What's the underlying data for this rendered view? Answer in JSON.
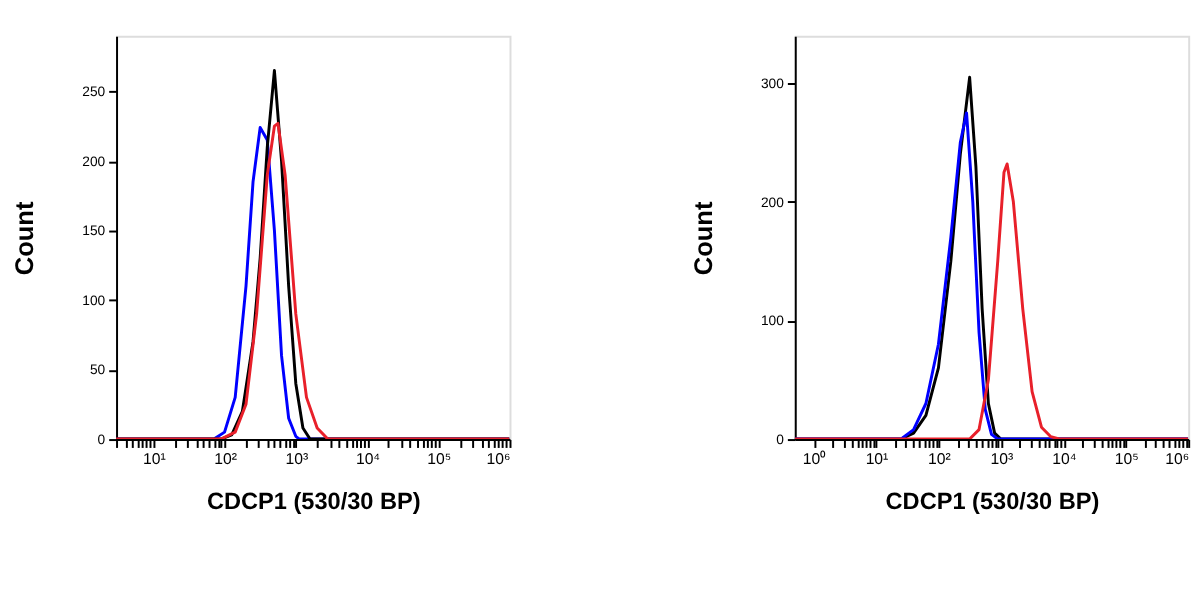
{
  "chart_data": [
    {
      "type": "line",
      "xlabel": "CDCP1 (530/30 BP)",
      "ylabel": "Count",
      "log": "x",
      "grid": false,
      "marker": "none",
      "line_style": "solid",
      "xlim": [
        3,
        1000000
      ],
      "ylim": [
        0,
        290
      ],
      "yticks": [
        0,
        50,
        100,
        150,
        200,
        250
      ],
      "xticks": [
        {
          "value": 3,
          "label": null
        },
        {
          "value": 4,
          "label": null
        },
        {
          "value": 5,
          "label": null
        },
        {
          "value": 6,
          "label": null
        },
        {
          "value": 7,
          "label": null
        },
        {
          "value": 8,
          "label": null
        },
        {
          "value": 9,
          "label": null
        },
        {
          "value": 10,
          "label": "10¹"
        },
        {
          "value": 20,
          "label": null
        },
        {
          "value": 30,
          "label": null
        },
        {
          "value": 40,
          "label": null
        },
        {
          "value": 50,
          "label": null
        },
        {
          "value": 60,
          "label": null
        },
        {
          "value": 70,
          "label": null
        },
        {
          "value": 80,
          "label": null
        },
        {
          "value": 90,
          "label": null
        },
        {
          "value": 100,
          "label": "10²"
        },
        {
          "value": 200,
          "label": null
        },
        {
          "value": 300,
          "label": null
        },
        {
          "value": 400,
          "label": null
        },
        {
          "value": 500,
          "label": null
        },
        {
          "value": 600,
          "label": null
        },
        {
          "value": 700,
          "label": null
        },
        {
          "value": 800,
          "label": null
        },
        {
          "value": 900,
          "label": null
        },
        {
          "value": 1000,
          "label": "10³"
        },
        {
          "value": 2000,
          "label": null
        },
        {
          "value": 3000,
          "label": null
        },
        {
          "value": 4000,
          "label": null
        },
        {
          "value": 5000,
          "label": null
        },
        {
          "value": 6000,
          "label": null
        },
        {
          "value": 7000,
          "label": null
        },
        {
          "value": 8000,
          "label": null
        },
        {
          "value": 9000,
          "label": null
        },
        {
          "value": 10000,
          "label": "10⁴"
        },
        {
          "value": 20000,
          "label": null
        },
        {
          "value": 30000,
          "label": null
        },
        {
          "value": 40000,
          "label": null
        },
        {
          "value": 50000,
          "label": null
        },
        {
          "value": 60000,
          "label": null
        },
        {
          "value": 70000,
          "label": null
        },
        {
          "value": 80000,
          "label": null
        },
        {
          "value": 90000,
          "label": null
        },
        {
          "value": 100000,
          "label": "10⁵"
        },
        {
          "value": 200000,
          "label": null
        },
        {
          "value": 300000,
          "label": null
        },
        {
          "value": 400000,
          "label": null
        },
        {
          "value": 500000,
          "label": null
        },
        {
          "value": 600000,
          "label": null
        },
        {
          "value": 700000,
          "label": null
        },
        {
          "value": 800000,
          "label": null
        },
        {
          "value": 900000,
          "label": null
        },
        {
          "value": 1000000,
          "label": "10⁶"
        }
      ],
      "series": [
        {
          "color": "#0000ff",
          "x": [
            3,
            71,
            100,
            141,
            200,
            251,
            316,
            398,
            501,
            631,
            794,
            1000,
            1122,
            1000000
          ],
          "values": [
            0,
            0,
            5,
            30,
            110,
            185,
            224,
            215,
            150,
            60,
            15,
            2,
            0,
            0
          ]
        },
        {
          "color": "#000000",
          "x": [
            3,
            89,
            126,
            178,
            251,
            316,
            398,
            501,
            631,
            794,
            1000,
            1259,
            1585,
            1000000
          ],
          "values": [
            0,
            0,
            3,
            20,
            70,
            130,
            210,
            265,
            200,
            110,
            40,
            8,
            0,
            0
          ]
        },
        {
          "color": "#e8202a",
          "x": [
            3,
            89,
            141,
            200,
            282,
            398,
            501,
            562,
            708,
            1000,
            1413,
            1995,
            2818,
            1000000
          ],
          "values": [
            0,
            0,
            5,
            25,
            90,
            190,
            225,
            227,
            190,
            90,
            30,
            8,
            0,
            0
          ]
        }
      ]
    },
    {
      "type": "line",
      "xlabel": "CDCP1 (530/30 BP)",
      "ylabel": "Count",
      "log": "x",
      "grid": false,
      "marker": "none",
      "line_style": "solid",
      "xlim": [
        0.5,
        1000000
      ],
      "ylim": [
        0,
        340
      ],
      "yticks": [
        0,
        100,
        200,
        300
      ],
      "xticks": [
        {
          "value": 1,
          "label": "10⁰"
        },
        {
          "value": 2,
          "label": null
        },
        {
          "value": 3,
          "label": null
        },
        {
          "value": 4,
          "label": null
        },
        {
          "value": 5,
          "label": null
        },
        {
          "value": 6,
          "label": null
        },
        {
          "value": 7,
          "label": null
        },
        {
          "value": 8,
          "label": null
        },
        {
          "value": 9,
          "label": null
        },
        {
          "value": 10,
          "label": "10¹"
        },
        {
          "value": 20,
          "label": null
        },
        {
          "value": 30,
          "label": null
        },
        {
          "value": 40,
          "label": null
        },
        {
          "value": 50,
          "label": null
        },
        {
          "value": 60,
          "label": null
        },
        {
          "value": 70,
          "label": null
        },
        {
          "value": 80,
          "label": null
        },
        {
          "value": 90,
          "label": null
        },
        {
          "value": 100,
          "label": "10²"
        },
        {
          "value": 200,
          "label": null
        },
        {
          "value": 300,
          "label": null
        },
        {
          "value": 400,
          "label": null
        },
        {
          "value": 500,
          "label": null
        },
        {
          "value": 600,
          "label": null
        },
        {
          "value": 700,
          "label": null
        },
        {
          "value": 800,
          "label": null
        },
        {
          "value": 900,
          "label": null
        },
        {
          "value": 1000,
          "label": "10³"
        },
        {
          "value": 2000,
          "label": null
        },
        {
          "value": 3000,
          "label": null
        },
        {
          "value": 4000,
          "label": null
        },
        {
          "value": 5000,
          "label": null
        },
        {
          "value": 6000,
          "label": null
        },
        {
          "value": 7000,
          "label": null
        },
        {
          "value": 8000,
          "label": null
        },
        {
          "value": 9000,
          "label": null
        },
        {
          "value": 10000,
          "label": "10⁴"
        },
        {
          "value": 20000,
          "label": null
        },
        {
          "value": 30000,
          "label": null
        },
        {
          "value": 40000,
          "label": null
        },
        {
          "value": 50000,
          "label": null
        },
        {
          "value": 60000,
          "label": null
        },
        {
          "value": 70000,
          "label": null
        },
        {
          "value": 80000,
          "label": null
        },
        {
          "value": 90000,
          "label": null
        },
        {
          "value": 100000,
          "label": "10⁵"
        },
        {
          "value": 200000,
          "label": null
        },
        {
          "value": 300000,
          "label": null
        },
        {
          "value": 400000,
          "label": null
        },
        {
          "value": 500000,
          "label": null
        },
        {
          "value": 600000,
          "label": null
        },
        {
          "value": 700000,
          "label": null
        },
        {
          "value": 800000,
          "label": null
        },
        {
          "value": 900000,
          "label": null
        },
        {
          "value": 1000000,
          "label": "10⁶"
        }
      ],
      "series": [
        {
          "color": "#000000",
          "x": [
            0.5,
            25,
            40,
            63,
            100,
            158,
            224,
            316,
            398,
            501,
            631,
            794,
            1000,
            1000000
          ],
          "values": [
            0,
            0,
            5,
            20,
            60,
            150,
            240,
            305,
            230,
            110,
            30,
            5,
            0,
            0
          ]
        },
        {
          "color": "#0000ff",
          "x": [
            0.5,
            25,
            40,
            63,
            100,
            158,
            224,
            282,
            355,
            447,
            562,
            708,
            891,
            1000000
          ],
          "values": [
            0,
            0,
            8,
            30,
            80,
            170,
            250,
            275,
            200,
            90,
            25,
            4,
            0,
            0
          ]
        },
        {
          "color": "#e8202a",
          "x": [
            0.5,
            316,
            447,
            631,
            891,
            1122,
            1259,
            1585,
            2239,
            3162,
            4467,
            6310,
            8913,
            1000000
          ],
          "values": [
            0,
            0,
            8,
            50,
            150,
            225,
            232,
            200,
            110,
            40,
            10,
            2,
            0,
            0
          ]
        }
      ]
    }
  ]
}
